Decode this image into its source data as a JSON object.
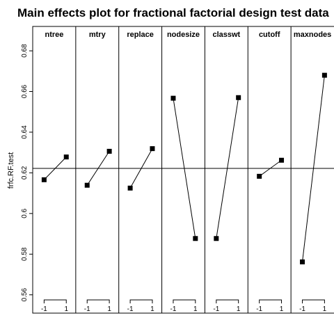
{
  "chart_data": {
    "type": "line",
    "title": "Main effects plot for fractional factorial design test data",
    "ylabel": "frfc.RF.test",
    "xlabel": "",
    "ylim": [
      0.551,
      0.692
    ],
    "yticks": [
      0.56,
      0.58,
      0.6,
      0.62,
      0.64,
      0.66,
      0.68
    ],
    "ytick_labels": [
      "0.56",
      "0.58",
      "0.6",
      "0.62",
      "0.64",
      "0.66",
      "0.68"
    ],
    "grand_mean": 0.6222,
    "levels": [
      "-1",
      "1"
    ],
    "factors": [
      {
        "name": "ntree",
        "values": [
          0.6166,
          0.6278
        ]
      },
      {
        "name": "mtry",
        "values": [
          0.6139,
          0.6306
        ]
      },
      {
        "name": "replace",
        "values": [
          0.6125,
          0.6319
        ]
      },
      {
        "name": "nodesize",
        "values": [
          0.6567,
          0.5877
        ]
      },
      {
        "name": "classwt",
        "values": [
          0.5877,
          0.657
        ]
      },
      {
        "name": "cutoff",
        "values": [
          0.6183,
          0.6262
        ]
      },
      {
        "name": "maxnodes",
        "values": [
          0.5762,
          0.668
        ]
      }
    ],
    "grid": false,
    "marker": "square",
    "colors": {
      "line": "#000000",
      "marker": "#000000",
      "frame": "#000000"
    }
  }
}
